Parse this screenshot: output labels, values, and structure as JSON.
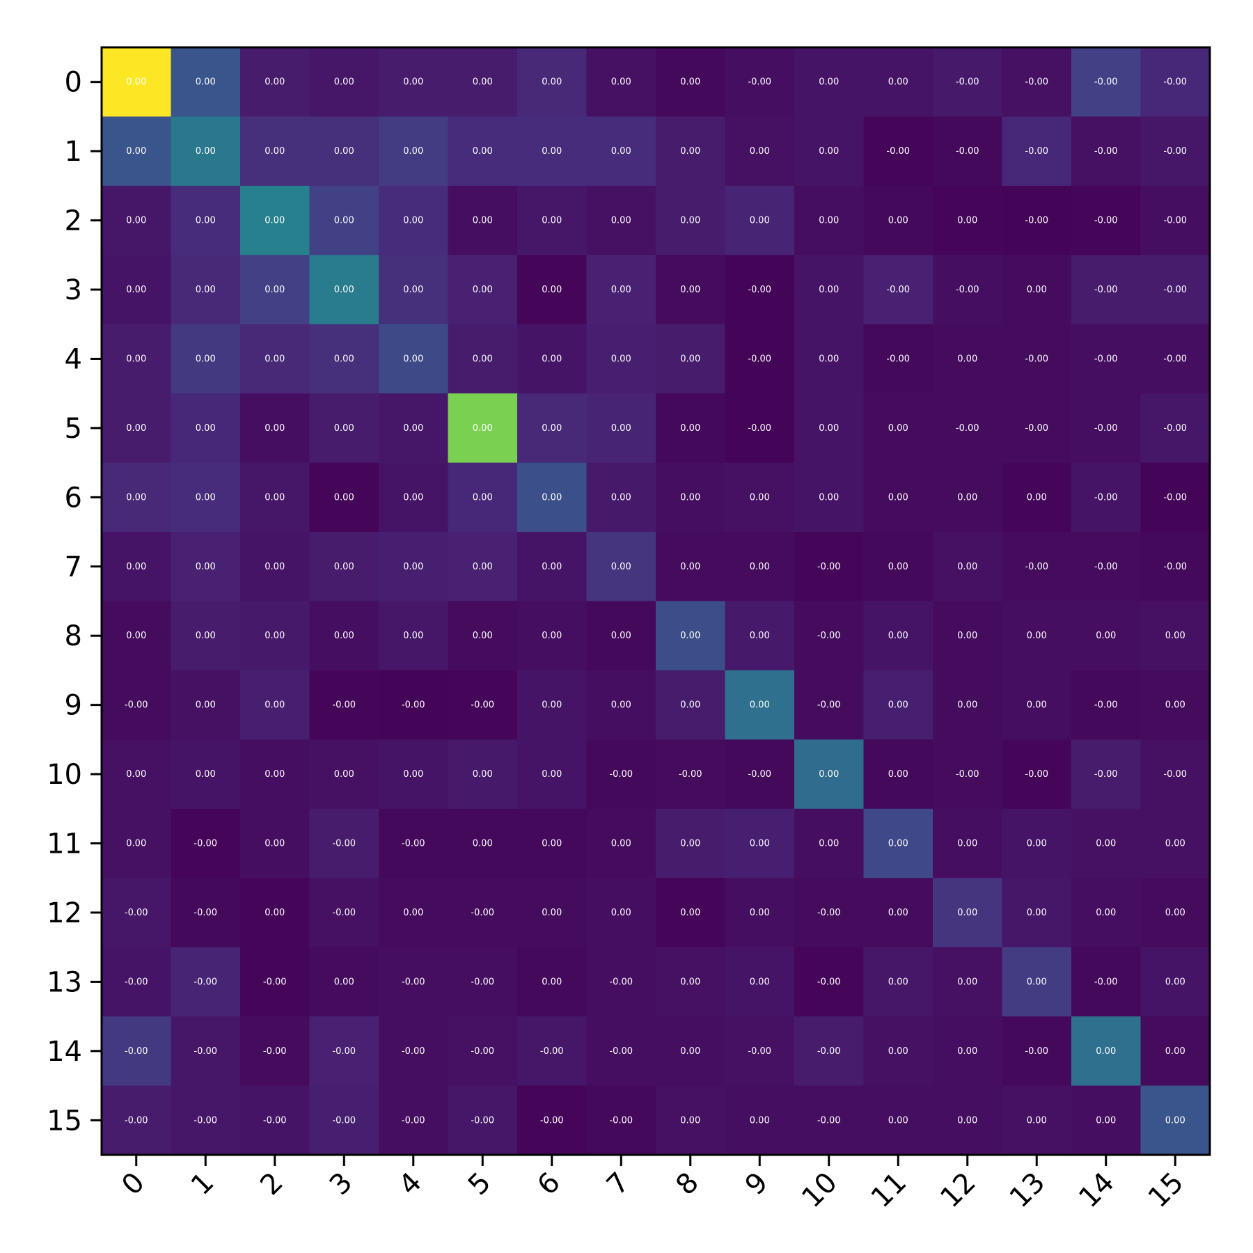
{
  "chart_data": {
    "type": "heatmap",
    "title": "",
    "xlabel": "",
    "ylabel": "",
    "colormap": "viridis",
    "grid": false,
    "x_tick_rotation_deg": 45,
    "x_categories": [
      "0",
      "1",
      "2",
      "3",
      "4",
      "5",
      "6",
      "7",
      "8",
      "9",
      "10",
      "11",
      "12",
      "13",
      "14",
      "15"
    ],
    "y_categories": [
      "0",
      "1",
      "2",
      "3",
      "4",
      "5",
      "6",
      "7",
      "8",
      "9",
      "10",
      "11",
      "12",
      "13",
      "14",
      "15"
    ],
    "color_values": [
      [
        1.0,
        0.33,
        0.1,
        0.08,
        0.1,
        0.1,
        0.15,
        0.06,
        0.03,
        0.05,
        0.07,
        0.07,
        0.09,
        0.06,
        0.24,
        0.14
      ],
      [
        0.33,
        0.5,
        0.17,
        0.17,
        0.22,
        0.16,
        0.16,
        0.16,
        0.1,
        0.06,
        0.07,
        0.02,
        0.03,
        0.14,
        0.06,
        0.08
      ],
      [
        0.08,
        0.16,
        0.54,
        0.24,
        0.16,
        0.05,
        0.08,
        0.06,
        0.1,
        0.13,
        0.05,
        0.03,
        0.02,
        0.01,
        0.02,
        0.05
      ],
      [
        0.07,
        0.15,
        0.24,
        0.52,
        0.17,
        0.12,
        0.02,
        0.12,
        0.04,
        0.01,
        0.07,
        0.12,
        0.05,
        0.04,
        0.1,
        0.1
      ],
      [
        0.1,
        0.21,
        0.15,
        0.17,
        0.28,
        0.1,
        0.07,
        0.11,
        0.1,
        0.01,
        0.07,
        0.03,
        0.04,
        0.04,
        0.05,
        0.05
      ],
      [
        0.1,
        0.14,
        0.05,
        0.1,
        0.08,
        0.88,
        0.15,
        0.13,
        0.03,
        0.01,
        0.07,
        0.04,
        0.04,
        0.04,
        0.05,
        0.08
      ],
      [
        0.15,
        0.16,
        0.08,
        0.02,
        0.07,
        0.14,
        0.31,
        0.09,
        0.05,
        0.06,
        0.07,
        0.04,
        0.04,
        0.02,
        0.07,
        0.01
      ],
      [
        0.07,
        0.12,
        0.07,
        0.1,
        0.11,
        0.12,
        0.07,
        0.19,
        0.04,
        0.04,
        0.02,
        0.03,
        0.06,
        0.04,
        0.04,
        0.03
      ],
      [
        0.04,
        0.1,
        0.09,
        0.05,
        0.08,
        0.04,
        0.05,
        0.03,
        0.3,
        0.09,
        0.04,
        0.07,
        0.04,
        0.05,
        0.05,
        0.06
      ],
      [
        0.04,
        0.06,
        0.11,
        0.02,
        0.01,
        0.02,
        0.07,
        0.05,
        0.1,
        0.46,
        0.04,
        0.11,
        0.04,
        0.05,
        0.03,
        0.04
      ],
      [
        0.06,
        0.07,
        0.05,
        0.06,
        0.07,
        0.09,
        0.07,
        0.03,
        0.04,
        0.03,
        0.44,
        0.03,
        0.04,
        0.02,
        0.1,
        0.06
      ],
      [
        0.06,
        0.02,
        0.05,
        0.1,
        0.03,
        0.03,
        0.03,
        0.04,
        0.1,
        0.11,
        0.05,
        0.27,
        0.05,
        0.07,
        0.06,
        0.06
      ],
      [
        0.08,
        0.03,
        0.02,
        0.06,
        0.04,
        0.04,
        0.04,
        0.05,
        0.02,
        0.05,
        0.04,
        0.04,
        0.19,
        0.08,
        0.05,
        0.04
      ],
      [
        0.07,
        0.13,
        0.02,
        0.04,
        0.05,
        0.05,
        0.03,
        0.05,
        0.06,
        0.07,
        0.02,
        0.08,
        0.06,
        0.22,
        0.03,
        0.07
      ],
      [
        0.21,
        0.08,
        0.04,
        0.12,
        0.05,
        0.06,
        0.08,
        0.05,
        0.05,
        0.06,
        0.1,
        0.06,
        0.05,
        0.03,
        0.46,
        0.04
      ],
      [
        0.1,
        0.08,
        0.07,
        0.11,
        0.05,
        0.08,
        0.02,
        0.03,
        0.06,
        0.05,
        0.05,
        0.05,
        0.05,
        0.06,
        0.05,
        0.33
      ]
    ],
    "annotations": [
      [
        "0.00",
        "0.00",
        "0.00",
        "0.00",
        "0.00",
        "0.00",
        "0.00",
        "0.00",
        "0.00",
        "-0.00",
        "0.00",
        "0.00",
        "-0.00",
        "-0.00",
        "-0.00",
        "-0.00"
      ],
      [
        "0.00",
        "0.00",
        "0.00",
        "0.00",
        "0.00",
        "0.00",
        "0.00",
        "0.00",
        "0.00",
        "0.00",
        "0.00",
        "-0.00",
        "-0.00",
        "-0.00",
        "-0.00",
        "-0.00"
      ],
      [
        "0.00",
        "0.00",
        "0.00",
        "0.00",
        "0.00",
        "0.00",
        "0.00",
        "0.00",
        "0.00",
        "0.00",
        "0.00",
        "0.00",
        "0.00",
        "-0.00",
        "-0.00",
        "-0.00"
      ],
      [
        "0.00",
        "0.00",
        "0.00",
        "0.00",
        "0.00",
        "0.00",
        "0.00",
        "0.00",
        "0.00",
        "-0.00",
        "0.00",
        "-0.00",
        "-0.00",
        "0.00",
        "-0.00",
        "-0.00"
      ],
      [
        "0.00",
        "0.00",
        "0.00",
        "0.00",
        "0.00",
        "0.00",
        "0.00",
        "0.00",
        "0.00",
        "-0.00",
        "0.00",
        "-0.00",
        "0.00",
        "-0.00",
        "-0.00",
        "-0.00"
      ],
      [
        "0.00",
        "0.00",
        "0.00",
        "0.00",
        "0.00",
        "0.00",
        "0.00",
        "0.00",
        "0.00",
        "-0.00",
        "0.00",
        "0.00",
        "-0.00",
        "-0.00",
        "-0.00",
        "-0.00"
      ],
      [
        "0.00",
        "0.00",
        "0.00",
        "0.00",
        "0.00",
        "0.00",
        "0.00",
        "0.00",
        "0.00",
        "0.00",
        "0.00",
        "0.00",
        "0.00",
        "0.00",
        "-0.00",
        "-0.00"
      ],
      [
        "0.00",
        "0.00",
        "0.00",
        "0.00",
        "0.00",
        "0.00",
        "0.00",
        "0.00",
        "0.00",
        "0.00",
        "-0.00",
        "0.00",
        "0.00",
        "-0.00",
        "-0.00",
        "-0.00"
      ],
      [
        "0.00",
        "0.00",
        "0.00",
        "0.00",
        "0.00",
        "0.00",
        "0.00",
        "0.00",
        "0.00",
        "0.00",
        "-0.00",
        "0.00",
        "0.00",
        "0.00",
        "0.00",
        "0.00"
      ],
      [
        "-0.00",
        "0.00",
        "0.00",
        "-0.00",
        "-0.00",
        "-0.00",
        "0.00",
        "0.00",
        "0.00",
        "0.00",
        "-0.00",
        "0.00",
        "0.00",
        "0.00",
        "-0.00",
        "0.00"
      ],
      [
        "0.00",
        "0.00",
        "0.00",
        "0.00",
        "0.00",
        "0.00",
        "0.00",
        "-0.00",
        "-0.00",
        "-0.00",
        "0.00",
        "0.00",
        "-0.00",
        "-0.00",
        "-0.00",
        "-0.00"
      ],
      [
        "0.00",
        "-0.00",
        "0.00",
        "-0.00",
        "-0.00",
        "0.00",
        "0.00",
        "0.00",
        "0.00",
        "0.00",
        "0.00",
        "0.00",
        "0.00",
        "0.00",
        "0.00",
        "0.00"
      ],
      [
        "-0.00",
        "-0.00",
        "0.00",
        "-0.00",
        "0.00",
        "-0.00",
        "0.00",
        "0.00",
        "0.00",
        "0.00",
        "-0.00",
        "0.00",
        "0.00",
        "0.00",
        "0.00",
        "0.00"
      ],
      [
        "-0.00",
        "-0.00",
        "-0.00",
        "0.00",
        "-0.00",
        "-0.00",
        "0.00",
        "-0.00",
        "0.00",
        "0.00",
        "-0.00",
        "0.00",
        "0.00",
        "0.00",
        "-0.00",
        "0.00"
      ],
      [
        "-0.00",
        "-0.00",
        "-0.00",
        "-0.00",
        "-0.00",
        "-0.00",
        "-0.00",
        "-0.00",
        "0.00",
        "-0.00",
        "-0.00",
        "0.00",
        "0.00",
        "-0.00",
        "0.00",
        "0.00"
      ],
      [
        "-0.00",
        "-0.00",
        "-0.00",
        "-0.00",
        "-0.00",
        "-0.00",
        "-0.00",
        "-0.00",
        "0.00",
        "0.00",
        "-0.00",
        "0.00",
        "0.00",
        "0.00",
        "0.00",
        "0.00"
      ]
    ]
  }
}
